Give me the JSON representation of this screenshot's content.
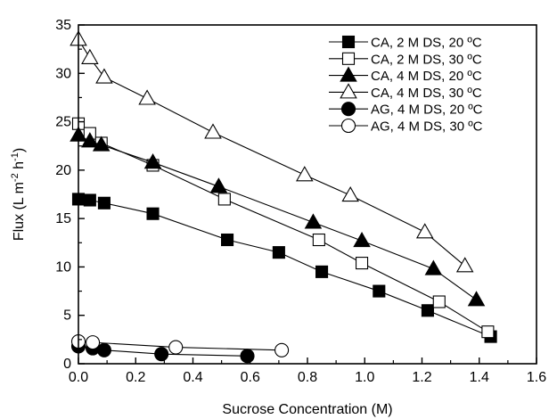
{
  "chart_data": {
    "type": "line",
    "xlabel": "Sucrose Concentration (M)",
    "ylabel": {
      "prefix": "Flux (L m",
      "sup1": "-2",
      "mid": " h",
      "sup2": "-1",
      "suffix": ")"
    },
    "xlim": [
      0.0,
      1.6
    ],
    "ylim": [
      0,
      35
    ],
    "xticks": [
      0.0,
      0.2,
      0.4,
      0.6,
      0.8,
      1.0,
      1.2,
      1.4,
      1.6
    ],
    "xtick_labels": [
      "0.0",
      "0.2",
      "0.4",
      "0.6",
      "0.8",
      "1.0",
      "1.2",
      "1.4",
      "1.6"
    ],
    "yticks": [
      0,
      5,
      10,
      15,
      20,
      25,
      30,
      35
    ],
    "ytick_labels": [
      "0",
      "5",
      "10",
      "15",
      "20",
      "25",
      "30",
      "35"
    ],
    "grid": false,
    "legend_position": "top-right",
    "series": [
      {
        "name": "CA, 2 M DS, 20 ºC",
        "marker": "square",
        "filled": true,
        "x": [
          0.0,
          0.04,
          0.09,
          0.26,
          0.52,
          0.7,
          0.85,
          1.05,
          1.22,
          1.44
        ],
        "y": [
          17.0,
          16.9,
          16.6,
          15.5,
          12.8,
          11.5,
          9.5,
          7.5,
          5.5,
          2.8
        ]
      },
      {
        "name": "CA, 2 M DS, 30 ºC",
        "marker": "square",
        "filled": false,
        "x": [
          0.0,
          0.04,
          0.08,
          0.26,
          0.51,
          0.84,
          0.99,
          1.26,
          1.43
        ],
        "y": [
          24.8,
          23.8,
          22.8,
          20.5,
          17.0,
          12.8,
          10.4,
          6.4,
          3.3
        ]
      },
      {
        "name": "CA, 4 M DS, 20 ºC",
        "marker": "triangle",
        "filled": true,
        "x": [
          0.0,
          0.04,
          0.08,
          0.26,
          0.49,
          0.82,
          0.99,
          1.24,
          1.39
        ],
        "y": [
          23.6,
          23.0,
          22.6,
          20.8,
          18.3,
          14.6,
          12.7,
          9.8,
          6.6
        ]
      },
      {
        "name": "CA, 4 M DS, 30 ºC",
        "marker": "triangle",
        "filled": false,
        "x": [
          0.0,
          0.04,
          0.09,
          0.24,
          0.47,
          0.79,
          0.95,
          1.21,
          1.35
        ],
        "y": [
          33.5,
          31.6,
          29.6,
          27.4,
          23.9,
          19.5,
          17.4,
          13.6,
          10.1
        ]
      },
      {
        "name": "AG, 4 M DS, 20 ºC",
        "marker": "circle",
        "filled": true,
        "x": [
          0.0,
          0.05,
          0.09,
          0.29,
          0.59
        ],
        "y": [
          1.8,
          1.6,
          1.4,
          1.0,
          0.8
        ]
      },
      {
        "name": "AG, 4 M DS, 30 ºC",
        "marker": "circle",
        "filled": false,
        "x": [
          0.0,
          0.05,
          0.34,
          0.71
        ],
        "y": [
          2.3,
          2.2,
          1.7,
          1.4
        ]
      }
    ]
  }
}
